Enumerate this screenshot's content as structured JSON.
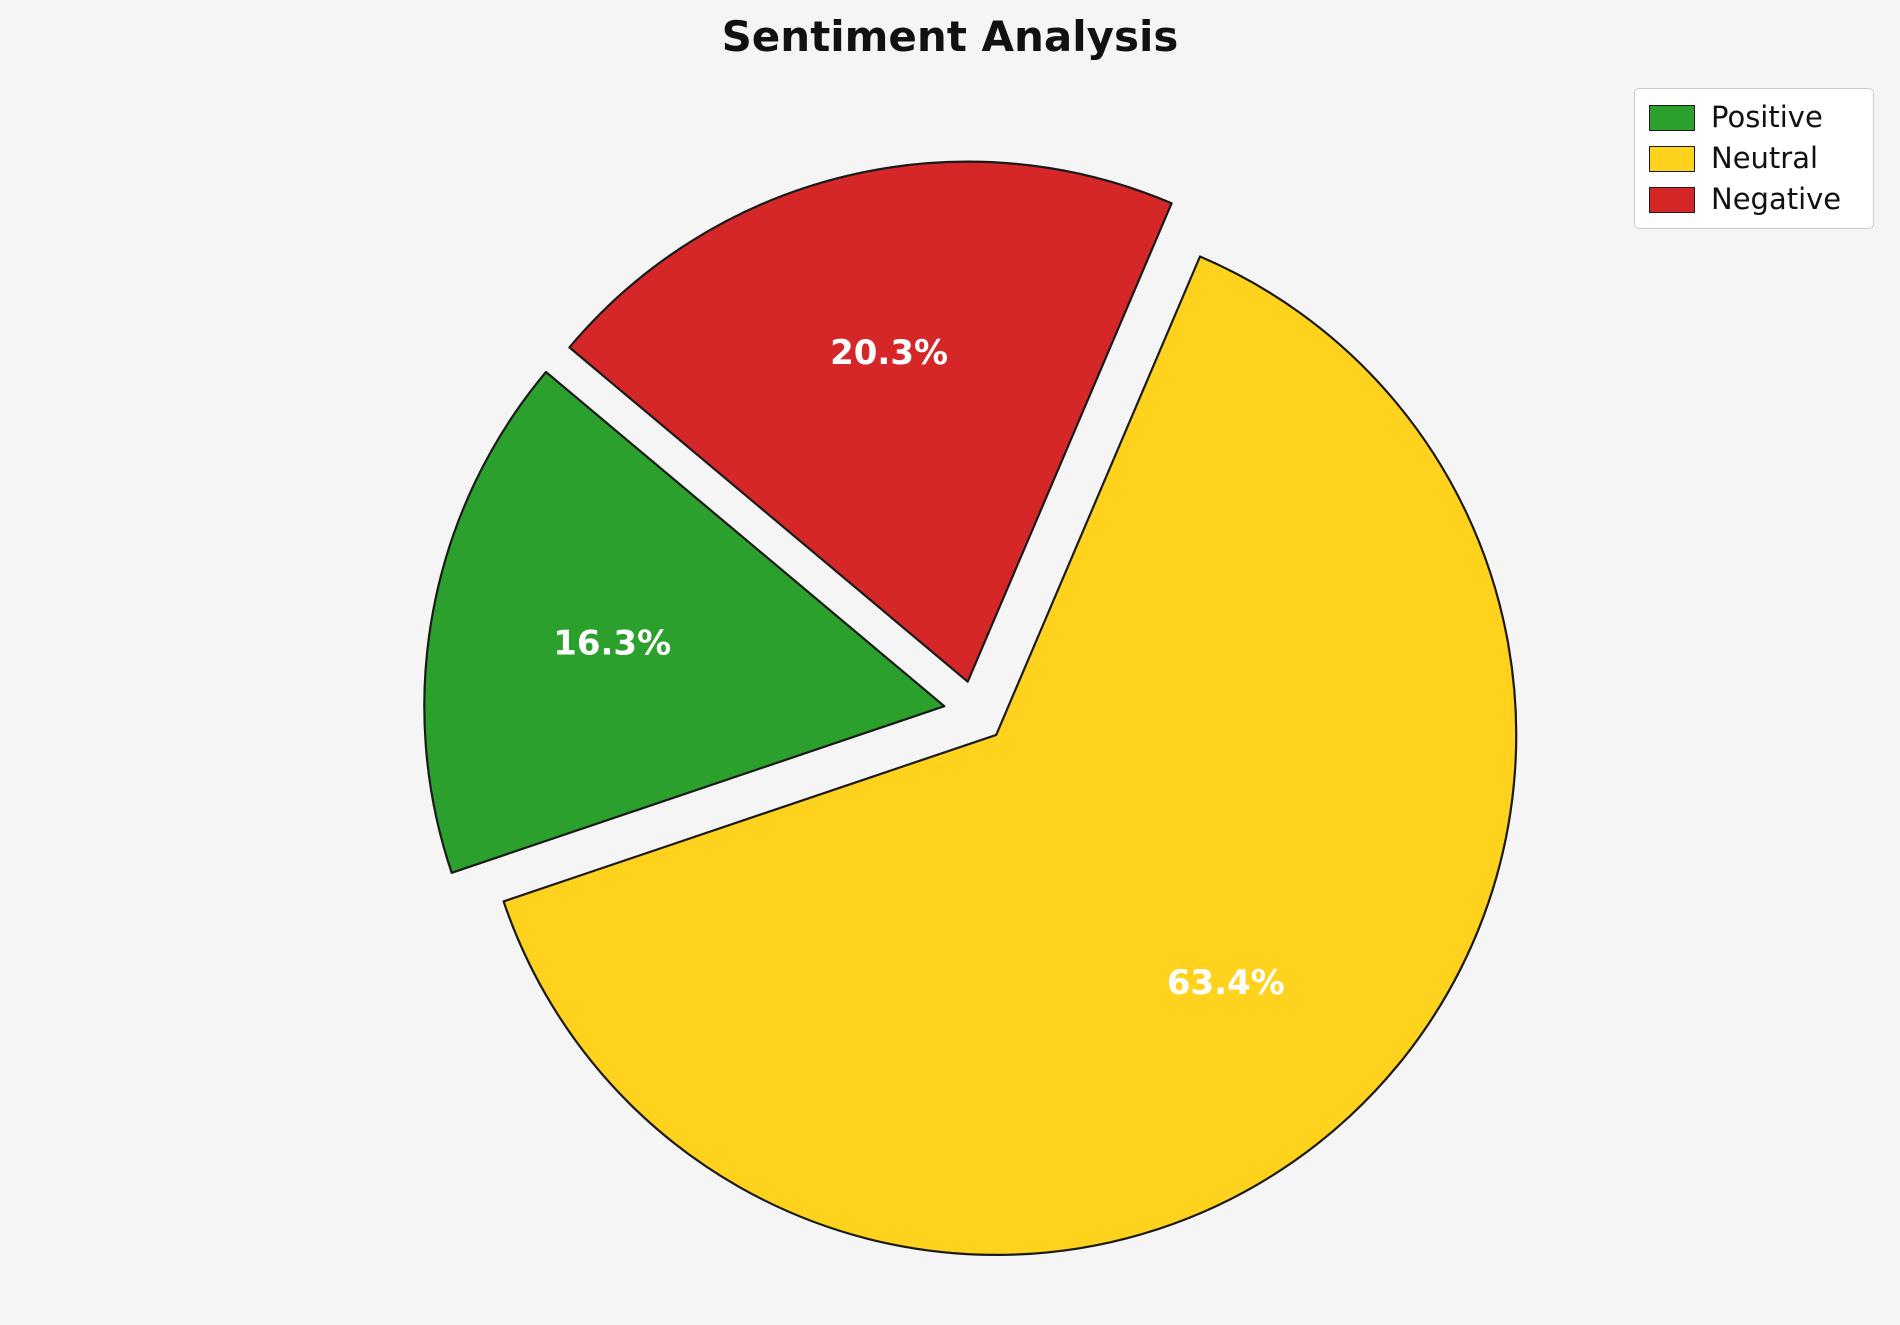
{
  "page": {
    "background_color": "#f5f5f5"
  },
  "chart_data": {
    "type": "pie",
    "title": "Sentiment Analysis",
    "categories": [
      "Positive",
      "Neutral",
      "Negative"
    ],
    "values": [
      16.3,
      63.4,
      20.3
    ],
    "value_labels": [
      "16.3%",
      "63.4%",
      "20.3%"
    ],
    "colors": [
      "#2ca02c",
      "#ffd21e",
      "#d62728"
    ],
    "edge_color": "#1a1a1a",
    "label_color": "#ffffff",
    "start_angle_deg": 140,
    "direction": "counterclockwise",
    "explode": [
      0.06,
      0.06,
      0.06
    ],
    "legend": {
      "position": "upper right",
      "entries": [
        "Positive",
        "Neutral",
        "Negative"
      ]
    }
  }
}
